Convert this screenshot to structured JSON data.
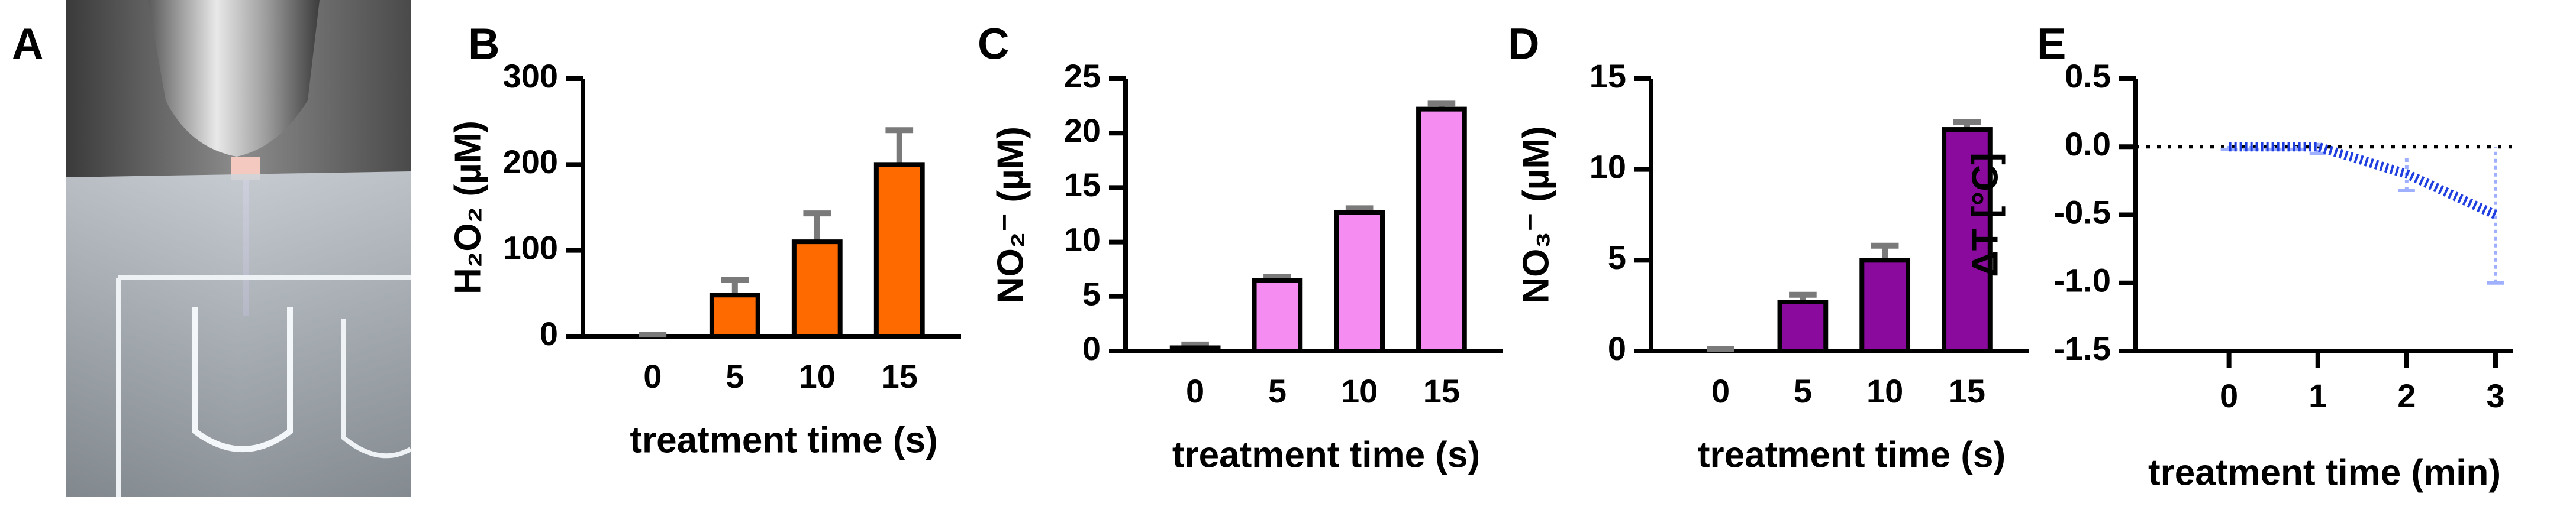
{
  "photo": {
    "panel": "A"
  },
  "chart_data": [
    {
      "type": "bar",
      "panel": "B",
      "y_label": "H₂O₂ (µM)",
      "x_label": "treatment time (s)",
      "categories": [
        "0",
        "5",
        "10",
        "15"
      ],
      "series": [
        {
          "color": "#ff6a00",
          "values": [
            0,
            48,
            110,
            200
          ],
          "errors": [
            2,
            18,
            33,
            40
          ]
        }
      ],
      "ylim": [
        0,
        300
      ],
      "yticks": [
        0,
        100,
        200,
        300
      ]
    },
    {
      "type": "bar",
      "panel": "C",
      "y_label": "NO₂⁻ (µM)",
      "x_label": "treatment time (s)",
      "categories": [
        "0",
        "5",
        "10",
        "15"
      ],
      "series": [
        {
          "color": "#f58cf2",
          "values": [
            0.3,
            6.5,
            12.7,
            22.2
          ],
          "errors": [
            0.3,
            0.3,
            0.4,
            0.5
          ]
        }
      ],
      "ylim": [
        0,
        25
      ],
      "yticks": [
        0,
        5,
        10,
        15,
        20,
        25
      ]
    },
    {
      "type": "bar",
      "panel": "D",
      "y_label": "NO₃⁻ (µM)",
      "x_label": "treatment time (s)",
      "categories": [
        "0",
        "5",
        "10",
        "15"
      ],
      "series": [
        {
          "color": "#8a0a9e",
          "values": [
            0,
            2.7,
            5.0,
            12.2
          ],
          "errors": [
            0.1,
            0.4,
            0.8,
            0.4
          ]
        }
      ],
      "ylim": [
        0,
        15
      ],
      "yticks": [
        0,
        5,
        10,
        15
      ]
    },
    {
      "type": "line",
      "panel": "E",
      "y_label": "ΔT [°C]",
      "x_label": "treatment time (min)",
      "x": [
        0,
        0.25,
        0.5,
        0.75,
        1,
        2,
        3
      ],
      "series": [
        {
          "color": "#1f3fe0",
          "values": [
            0,
            0,
            0,
            0,
            0,
            -0.2,
            -0.5
          ],
          "errors": [
            0.02,
            0.02,
            0.02,
            0.02,
            0.05,
            0.12,
            0.5
          ]
        }
      ],
      "xlim": [
        -1.05,
        3.2
      ],
      "xticks": [
        0,
        1,
        2,
        3
      ],
      "ylim": [
        -1.5,
        0.5
      ],
      "yticks": [
        {
          "value": -1.5,
          "label": "-1.5"
        },
        {
          "value": -1,
          "label": "-1.0"
        },
        {
          "value": -0.5,
          "label": "-0.5"
        },
        {
          "value": 0,
          "label": "0.0"
        },
        {
          "value": 0.5,
          "label": "0.5"
        }
      ],
      "zero_line": true
    }
  ]
}
